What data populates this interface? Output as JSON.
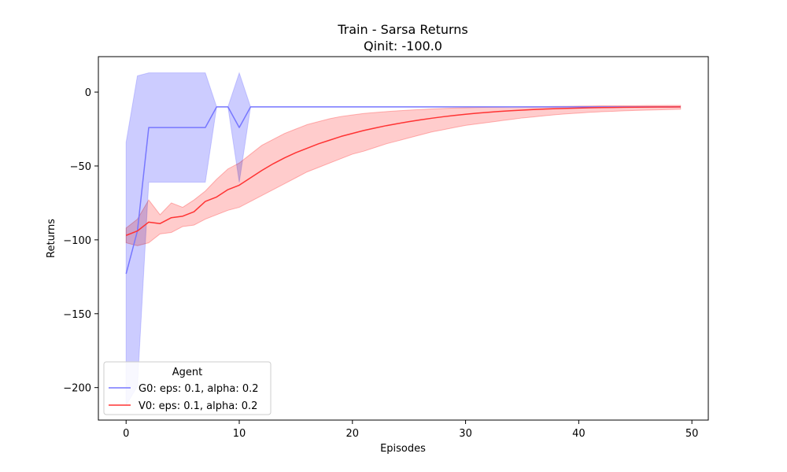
{
  "chart_data": {
    "type": "line",
    "title": "Train - Sarsa Returns",
    "subtitle": "Qinit: -100.0",
    "xlabel": "Episodes",
    "ylabel": "Returns",
    "xlim": [
      -2.45,
      51.45
    ],
    "ylim": [
      -222,
      24
    ],
    "xticks": [
      0,
      10,
      20,
      30,
      40,
      50
    ],
    "xtick_labels": [
      "0",
      "10",
      "20",
      "30",
      "40",
      "50"
    ],
    "yticks": [
      0,
      -50,
      -100,
      -150,
      -200
    ],
    "ytick_labels": [
      "0",
      "−50",
      "−100",
      "−150",
      "−200"
    ],
    "grid": false,
    "legend": {
      "title": "Agent",
      "placement": "lower-left"
    },
    "series": [
      {
        "name": "G0: eps: 0.1, alpha: 0.2",
        "color": "#7777ff",
        "fill_color": "#ccccff",
        "x": [
          0,
          1,
          2,
          3,
          4,
          5,
          6,
          7,
          8,
          9,
          10,
          11,
          12,
          49
        ],
        "y": [
          -123,
          -94,
          -24,
          -24,
          -24,
          -24,
          -24,
          -24,
          -10,
          -10,
          -24,
          -10,
          -10,
          -10
        ],
        "upper": [
          -34,
          11,
          13,
          13,
          13,
          13,
          13,
          13,
          -10,
          -10,
          13,
          -10,
          -10,
          -10
        ],
        "lower": [
          -212,
          -199,
          -61,
          -61,
          -61,
          -61,
          -61,
          -61,
          -10,
          -10,
          -61,
          -10,
          -10,
          -10
        ]
      },
      {
        "name": "V0: eps: 0.1, alpha: 0.2",
        "color": "#ff3333",
        "fill_color": "#ffcccc",
        "x": [
          0,
          1,
          2,
          3,
          4,
          5,
          6,
          7,
          8,
          9,
          10,
          11,
          12,
          13,
          14,
          15,
          16,
          17,
          18,
          19,
          20,
          21,
          22,
          23,
          24,
          25,
          26,
          27,
          28,
          29,
          30,
          31,
          32,
          33,
          34,
          35,
          36,
          37,
          38,
          39,
          40,
          41,
          42,
          43,
          44,
          45,
          46,
          47,
          48,
          49
        ],
        "y": [
          -97,
          -94,
          -88,
          -89,
          -85,
          -84,
          -81,
          -74,
          -71,
          -66,
          -63,
          -58,
          -53,
          -48.5,
          -44.5,
          -41,
          -38,
          -35,
          -32.5,
          -30,
          -28,
          -26,
          -24.3,
          -22.7,
          -21.3,
          -20,
          -18.8,
          -17.7,
          -16.7,
          -15.8,
          -15,
          -14.3,
          -13.7,
          -13.1,
          -12.6,
          -12.2,
          -11.8,
          -11.5,
          -11.2,
          -11,
          -10.8,
          -10.6,
          -10.5,
          -10.4,
          -10.3,
          -10.2,
          -10.15,
          -10.1,
          -10.05,
          -10
        ],
        "upper": [
          -92,
          -86,
          -73,
          -83,
          -75,
          -78,
          -73,
          -67,
          -59,
          -52,
          -48,
          -42,
          -36,
          -32,
          -28,
          -25,
          -22,
          -20,
          -18,
          -16.5,
          -15.5,
          -14.5,
          -13.8,
          -13.2,
          -12.7,
          -12.2,
          -11.8,
          -11.4,
          -11.1,
          -10.8,
          -10.6,
          -10.4,
          -10.3,
          -10.2,
          -10.1,
          -10,
          -9.9,
          -9.8,
          -9.7,
          -9.6,
          -9.5,
          -9.4,
          -9.3,
          -9.3,
          -9.2,
          -9.2,
          -9.1,
          -9.1,
          -9.0,
          -9.0
        ],
        "lower": [
          -102,
          -104,
          -102,
          -96,
          -95,
          -91,
          -90,
          -86,
          -83,
          -80,
          -78,
          -74,
          -70,
          -66,
          -62,
          -58,
          -54,
          -51,
          -48,
          -45,
          -42,
          -40,
          -37.5,
          -35,
          -33,
          -31,
          -29,
          -27,
          -25.5,
          -24,
          -22.5,
          -21.5,
          -20.5,
          -19.5,
          -18.5,
          -17.5,
          -16.8,
          -16,
          -15.3,
          -14.7,
          -14.2,
          -13.7,
          -13.3,
          -13,
          -12.7,
          -12.4,
          -12.2,
          -12,
          -11.8,
          -11.6
        ]
      }
    ]
  }
}
